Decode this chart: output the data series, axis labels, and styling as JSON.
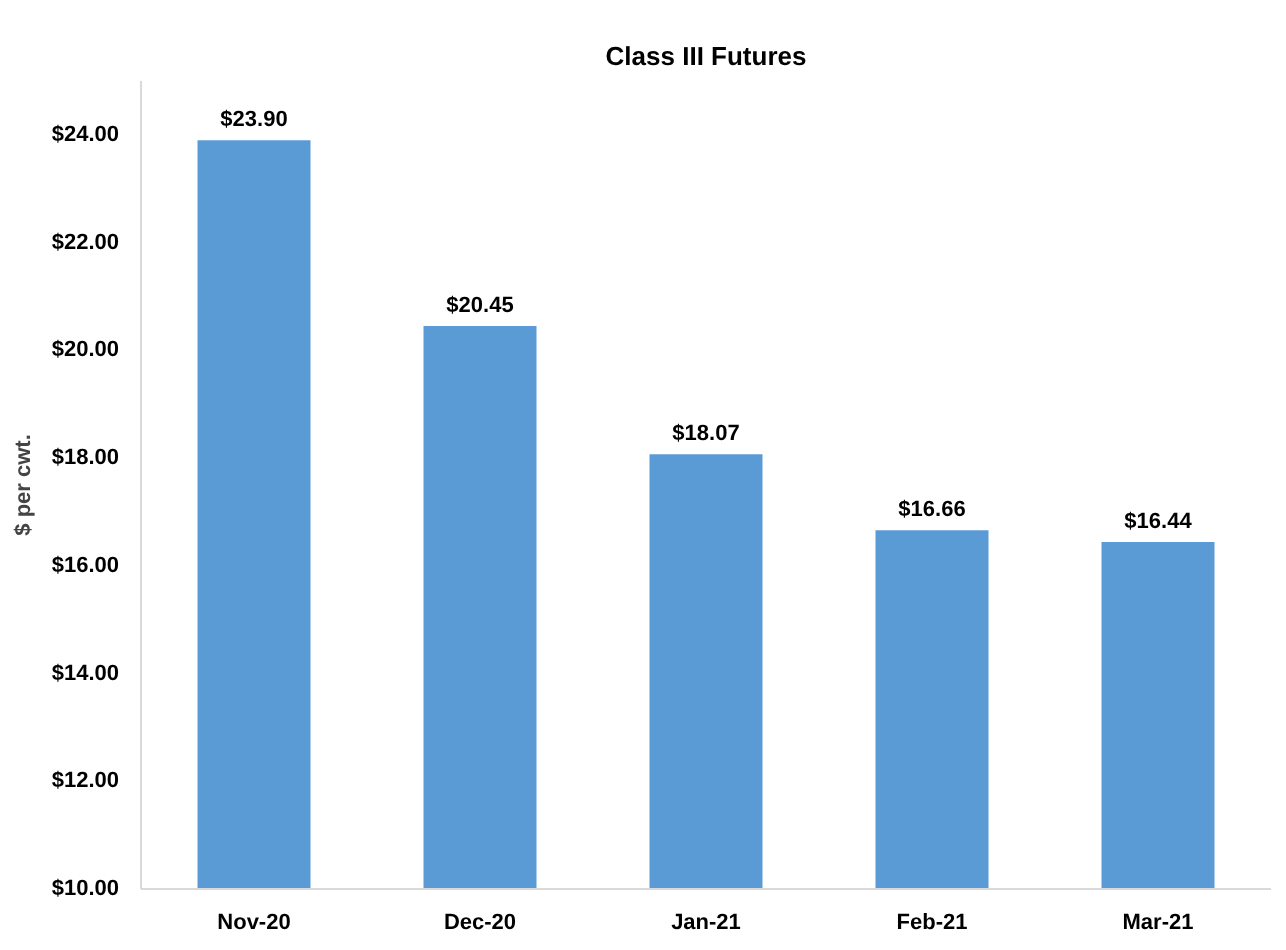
{
  "chart_data": {
    "type": "bar",
    "title": "Class III Futures",
    "ylabel": "$ per cwt.",
    "categories": [
      "Nov-20",
      "Dec-20",
      "Jan-21",
      "Feb-21",
      "Mar-21"
    ],
    "values": [
      23.9,
      20.45,
      18.07,
      16.66,
      16.44
    ],
    "value_labels": [
      "$23.90",
      "$20.45",
      "$18.07",
      "$16.66",
      "$16.44"
    ],
    "color": "#5b9bd5",
    "ylim": [
      10,
      25
    ],
    "yticks": [
      {
        "value": 10,
        "label": "$10.00"
      },
      {
        "value": 12,
        "label": "$12.00"
      },
      {
        "value": 14,
        "label": "$14.00"
      },
      {
        "value": 16,
        "label": "$16.00"
      },
      {
        "value": 18,
        "label": "$18.00"
      },
      {
        "value": 20,
        "label": "$20.00"
      },
      {
        "value": 22,
        "label": "$22.00"
      },
      {
        "value": 24,
        "label": "$24.00"
      }
    ],
    "grid": false
  }
}
